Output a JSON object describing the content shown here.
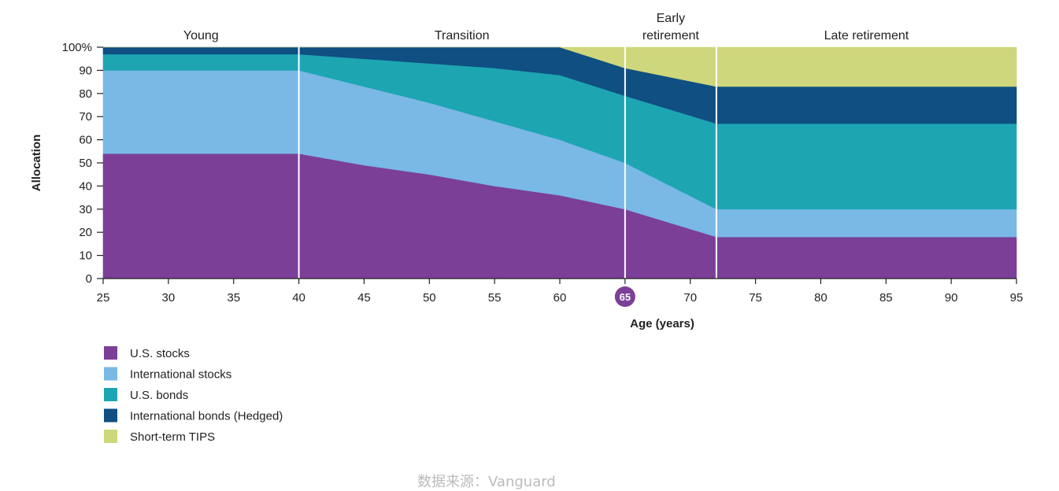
{
  "chart_data": {
    "type": "area",
    "stacked": true,
    "title": "",
    "xlabel": "Age (years)",
    "ylabel": "Allocation",
    "xlim": [
      25,
      95
    ],
    "ylim": [
      0,
      100
    ],
    "x_ticks": [
      25,
      30,
      35,
      40,
      45,
      50,
      55,
      60,
      65,
      70,
      75,
      80,
      85,
      90,
      95
    ],
    "y_ticks": [
      0,
      10,
      20,
      30,
      40,
      50,
      60,
      70,
      80,
      90,
      100
    ],
    "y_tick_labels": [
      "0",
      "10",
      "20",
      "30",
      "40",
      "50",
      "60",
      "70",
      "80",
      "90",
      "100%"
    ],
    "highlighted_x": 65,
    "grid": false,
    "legend_position": "bottom-left",
    "x": [
      25,
      40,
      45,
      50,
      55,
      60,
      65,
      72,
      95
    ],
    "series": [
      {
        "name": "U.S. stocks",
        "color": "#7b3f98",
        "values": [
          54,
          54,
          49,
          45,
          40,
          36,
          30,
          18,
          18
        ]
      },
      {
        "name": "International stocks",
        "color": "#7ab8e6",
        "values": [
          36,
          36,
          34,
          31,
          28,
          24,
          20,
          12,
          12
        ]
      },
      {
        "name": "U.S. bonds",
        "color": "#1ea5b2",
        "values": [
          7,
          7,
          12,
          17,
          23,
          28,
          29,
          37,
          37
        ]
      },
      {
        "name": "International bonds (Hedged)",
        "color": "#0f4f82",
        "values": [
          3,
          3,
          5,
          7,
          9,
          12,
          12,
          16,
          16
        ]
      },
      {
        "name": "Short-term TIPS",
        "color": "#cfd77c",
        "values": [
          0,
          0,
          0,
          0,
          0,
          0,
          9,
          17,
          17
        ]
      }
    ],
    "phases": [
      {
        "label": "Young",
        "label_lines": [
          "Young"
        ],
        "start": 25,
        "end": 40
      },
      {
        "label": "Transition",
        "label_lines": [
          "Transition"
        ],
        "start": 40,
        "end": 65
      },
      {
        "label": "Early retirement",
        "label_lines": [
          "Early",
          "retirement"
        ],
        "start": 65,
        "end": 72
      },
      {
        "label": "Late retirement",
        "label_lines": [
          "Late retirement"
        ],
        "start": 72,
        "end": 95
      }
    ],
    "phase_dividers": [
      40,
      65,
      72
    ]
  },
  "footer": {
    "note": "数据来源：Vanguard"
  }
}
